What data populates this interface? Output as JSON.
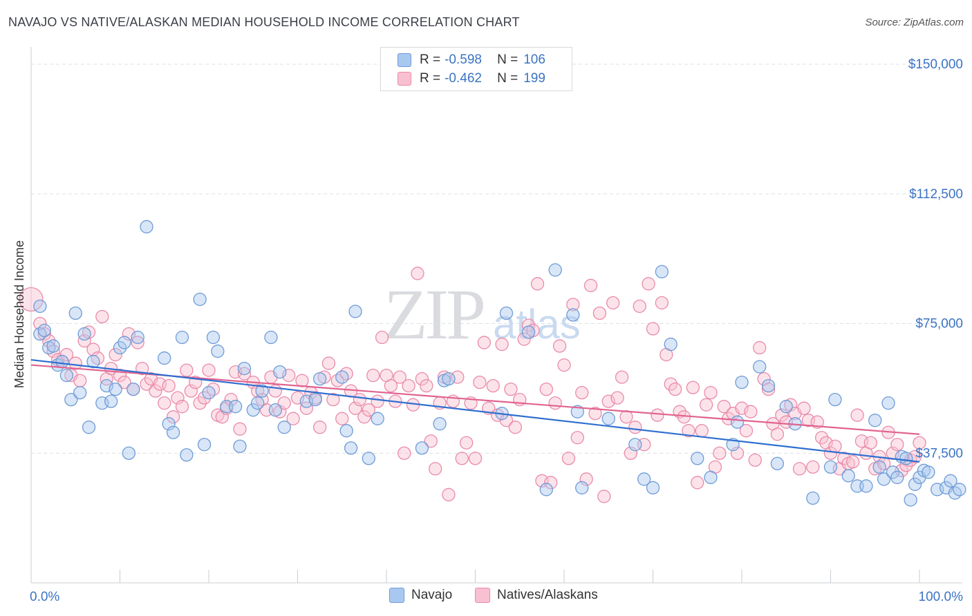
{
  "title": "NAVAJO VS NATIVE/ALASKAN MEDIAN HOUSEHOLD INCOME CORRELATION CHART",
  "source": "Source: ZipAtlas.com",
  "watermark": "ZIPatlas",
  "legend_top": [
    {
      "r_label": "R =",
      "r_value": "-0.598",
      "n_label": "N =",
      "n_value": "106"
    },
    {
      "r_label": "R =",
      "r_value": "-0.462",
      "n_label": "N =",
      "n_value": "199"
    }
  ],
  "colors": {
    "navajo_fill": "#a9c8f0",
    "navajo_stroke": "#6e9bd6",
    "navajo_line": "#2f6fd0",
    "native_fill": "#f8c0d0",
    "native_stroke": "#e98aaa",
    "native_line": "#e0638f",
    "axis_text": "#3b73c4",
    "grid": "#dcdfe4"
  },
  "chart_data": {
    "type": "scatter",
    "title": "NAVAJO VS NATIVE/ALASKAN MEDIAN HOUSEHOLD INCOME CORRELATION CHART",
    "xlabel": "",
    "ylabel": "Median Household Income",
    "x_tick_labels": [
      "0.0%",
      "100.0%"
    ],
    "y_ticks": [
      37500,
      75000,
      112500,
      150000
    ],
    "y_tick_labels": [
      "$37,500",
      "$75,000",
      "$112,500",
      "$150,000"
    ],
    "xlim": [
      0,
      100
    ],
    "ylim": [
      0,
      153000
    ],
    "grid": true,
    "legend_position": "bottom",
    "series": [
      {
        "name": "Navajo",
        "r": -0.598,
        "n": 106,
        "trend": [
          [
            0,
            64500
          ],
          [
            100,
            35000
          ]
        ],
        "points": [
          [
            1,
            80000
          ],
          [
            1,
            72000
          ],
          [
            1.5,
            73000
          ],
          [
            2,
            68000
          ],
          [
            2.5,
            68500
          ],
          [
            3,
            63000
          ],
          [
            3.5,
            64000
          ],
          [
            4,
            60000
          ],
          [
            4.5,
            53000
          ],
          [
            5,
            78000
          ],
          [
            5.5,
            55000
          ],
          [
            6,
            72000
          ],
          [
            6.5,
            45000
          ],
          [
            7,
            64000
          ],
          [
            8,
            52000
          ],
          [
            8.5,
            57000
          ],
          [
            9,
            52500
          ],
          [
            9.5,
            56000
          ],
          [
            10,
            68000
          ],
          [
            10.5,
            69500
          ],
          [
            11,
            37500
          ],
          [
            11.5,
            56000
          ],
          [
            12,
            71000
          ],
          [
            13,
            103000
          ],
          [
            15,
            65000
          ],
          [
            15.5,
            46000
          ],
          [
            16,
            43500
          ],
          [
            17,
            71000
          ],
          [
            17.5,
            37000
          ],
          [
            19,
            82000
          ],
          [
            19.5,
            40000
          ],
          [
            20,
            55000
          ],
          [
            20.5,
            71000
          ],
          [
            21,
            67000
          ],
          [
            22,
            51000
          ],
          [
            23,
            51000
          ],
          [
            23.5,
            39500
          ],
          [
            24,
            62000
          ],
          [
            25,
            50000
          ],
          [
            25.5,
            52000
          ],
          [
            26,
            55500
          ],
          [
            27,
            71000
          ],
          [
            27.5,
            50000
          ],
          [
            28,
            61000
          ],
          [
            28.5,
            45000
          ],
          [
            31,
            52500
          ],
          [
            32,
            53000
          ],
          [
            32.5,
            59000
          ],
          [
            35,
            59500
          ],
          [
            35.5,
            44000
          ],
          [
            36,
            39000
          ],
          [
            36.5,
            78500
          ],
          [
            38,
            36000
          ],
          [
            39,
            47500
          ],
          [
            44,
            39000
          ],
          [
            46,
            46000
          ],
          [
            46.5,
            58500
          ],
          [
            47,
            59000
          ],
          [
            53,
            49000
          ],
          [
            53.5,
            78000
          ],
          [
            56,
            72500
          ],
          [
            58,
            27000
          ],
          [
            59,
            90500
          ],
          [
            61,
            77500
          ],
          [
            61.5,
            49500
          ],
          [
            62,
            27500
          ],
          [
            65,
            47500
          ],
          [
            68,
            40000
          ],
          [
            69,
            30000
          ],
          [
            70,
            27500
          ],
          [
            71,
            90000
          ],
          [
            72,
            69000
          ],
          [
            75,
            36000
          ],
          [
            76.5,
            30500
          ],
          [
            79,
            40000
          ],
          [
            79.5,
            46500
          ],
          [
            80,
            58000
          ],
          [
            82,
            62500
          ],
          [
            83,
            57000
          ],
          [
            84,
            34500
          ],
          [
            85,
            51000
          ],
          [
            86,
            46000
          ],
          [
            88,
            24500
          ],
          [
            90,
            33500
          ],
          [
            90.5,
            53000
          ],
          [
            92,
            31000
          ],
          [
            93,
            28000
          ],
          [
            94,
            28000
          ],
          [
            95,
            47000
          ],
          [
            95.5,
            33500
          ],
          [
            96,
            30000
          ],
          [
            96.5,
            52000
          ],
          [
            97,
            32000
          ],
          [
            97.5,
            30500
          ],
          [
            98,
            36500
          ],
          [
            98.5,
            36000
          ],
          [
            99,
            24000
          ],
          [
            99.5,
            28500
          ],
          [
            100,
            30500
          ],
          [
            100.5,
            32500
          ],
          [
            101,
            32000
          ],
          [
            102,
            27000
          ],
          [
            103,
            27500
          ],
          [
            103.5,
            29500
          ],
          [
            104,
            26000
          ],
          [
            104.5,
            27000
          ]
        ]
      },
      {
        "name": "Natives/Alaskans",
        "r": -0.462,
        "n": 199,
        "trend": [
          [
            0,
            63000
          ],
          [
            100,
            43000
          ]
        ],
        "points": [
          [
            0,
            82000
          ],
          [
            1,
            75000
          ],
          [
            1.5,
            72000
          ],
          [
            2,
            70000
          ],
          [
            2.5,
            67000
          ],
          [
            3,
            64500
          ],
          [
            3.5,
            64000
          ],
          [
            4,
            66000
          ],
          [
            4.5,
            60000
          ],
          [
            5,
            63500
          ],
          [
            5.5,
            58500
          ],
          [
            6,
            70000
          ],
          [
            6.5,
            72500
          ],
          [
            7,
            67500
          ],
          [
            7.5,
            65000
          ],
          [
            8,
            77000
          ],
          [
            8.5,
            59000
          ],
          [
            9,
            62000
          ],
          [
            9.5,
            66000
          ],
          [
            10,
            60000
          ],
          [
            10.5,
            58000
          ],
          [
            11,
            72000
          ],
          [
            11.5,
            56000
          ],
          [
            12,
            69500
          ],
          [
            12.5,
            62000
          ],
          [
            13,
            57500
          ],
          [
            13.5,
            59000
          ],
          [
            14,
            55500
          ],
          [
            14.5,
            57500
          ],
          [
            15,
            52000
          ],
          [
            15.5,
            57000
          ],
          [
            16,
            48000
          ],
          [
            16.5,
            53500
          ],
          [
            17,
            51000
          ],
          [
            17.5,
            61500
          ],
          [
            18,
            55500
          ],
          [
            18.5,
            58000
          ],
          [
            19,
            52000
          ],
          [
            19.5,
            53500
          ],
          [
            20,
            61500
          ],
          [
            20.5,
            56000
          ],
          [
            21,
            48500
          ],
          [
            21.5,
            48000
          ],
          [
            22,
            50500
          ],
          [
            22.5,
            53000
          ],
          [
            23,
            61000
          ],
          [
            23.5,
            44500
          ],
          [
            24,
            60500
          ],
          [
            25,
            58000
          ],
          [
            25.5,
            55500
          ],
          [
            26,
            53000
          ],
          [
            26.5,
            50000
          ],
          [
            27,
            59500
          ],
          [
            27.5,
            55500
          ],
          [
            28,
            49500
          ],
          [
            28.5,
            52000
          ],
          [
            29,
            60000
          ],
          [
            29.5,
            47500
          ],
          [
            30,
            53500
          ],
          [
            30.5,
            58500
          ],
          [
            31,
            50500
          ],
          [
            31.5,
            55000
          ],
          [
            32,
            53500
          ],
          [
            32.5,
            45000
          ],
          [
            33,
            59500
          ],
          [
            33.5,
            63500
          ],
          [
            34,
            53000
          ],
          [
            34.5,
            58500
          ],
          [
            35,
            47500
          ],
          [
            35.5,
            60500
          ],
          [
            36,
            55500
          ],
          [
            36.5,
            50500
          ],
          [
            37,
            53000
          ],
          [
            37.5,
            48000
          ],
          [
            38,
            50000
          ],
          [
            38.5,
            60000
          ],
          [
            39,
            52500
          ],
          [
            39.5,
            71000
          ],
          [
            40,
            60000
          ],
          [
            40.5,
            57000
          ],
          [
            41,
            52500
          ],
          [
            41.5,
            59500
          ],
          [
            42,
            37500
          ],
          [
            42.5,
            57000
          ],
          [
            43,
            51500
          ],
          [
            43.5,
            89500
          ],
          [
            44,
            59000
          ],
          [
            44.5,
            57000
          ],
          [
            45,
            41000
          ],
          [
            45.5,
            33000
          ],
          [
            46,
            52000
          ],
          [
            46.5,
            59500
          ],
          [
            47,
            25500
          ],
          [
            47.5,
            52500
          ],
          [
            48,
            59500
          ],
          [
            48.5,
            36000
          ],
          [
            49,
            40500
          ],
          [
            49.5,
            52000
          ],
          [
            50,
            36000
          ],
          [
            50.5,
            58000
          ],
          [
            51,
            69500
          ],
          [
            51.5,
            50500
          ],
          [
            52,
            57000
          ],
          [
            52.5,
            48500
          ],
          [
            53,
            69000
          ],
          [
            53.5,
            47000
          ],
          [
            54,
            56000
          ],
          [
            54.5,
            45000
          ],
          [
            55,
            53000
          ],
          [
            55.5,
            70500
          ],
          [
            56,
            74500
          ],
          [
            56.5,
            73000
          ],
          [
            57,
            86500
          ],
          [
            57.5,
            29500
          ],
          [
            58,
            56000
          ],
          [
            58.5,
            29000
          ],
          [
            59,
            52000
          ],
          [
            59.5,
            68500
          ],
          [
            60,
            63000
          ],
          [
            60.5,
            36000
          ],
          [
            61,
            80500
          ],
          [
            61.5,
            42000
          ],
          [
            62,
            55000
          ],
          [
            62.5,
            30000
          ],
          [
            63,
            86000
          ],
          [
            63.5,
            49000
          ],
          [
            64,
            78000
          ],
          [
            64.5,
            25000
          ],
          [
            65,
            52500
          ],
          [
            65.5,
            81000
          ],
          [
            66,
            53500
          ],
          [
            66.5,
            59500
          ],
          [
            67,
            48000
          ],
          [
            67.5,
            37500
          ],
          [
            68,
            45000
          ],
          [
            68.5,
            80000
          ],
          [
            69,
            40000
          ],
          [
            69.5,
            86500
          ],
          [
            70,
            73500
          ],
          [
            70.5,
            48500
          ],
          [
            71,
            81000
          ],
          [
            71.5,
            66000
          ],
          [
            72,
            57500
          ],
          [
            72.5,
            56000
          ],
          [
            73,
            49500
          ],
          [
            73.5,
            48000
          ],
          [
            74,
            44000
          ],
          [
            74.5,
            56500
          ],
          [
            75,
            29000
          ],
          [
            75.5,
            44000
          ],
          [
            76,
            51500
          ],
          [
            76.5,
            55000
          ],
          [
            77,
            33500
          ],
          [
            77.5,
            37500
          ],
          [
            78,
            51000
          ],
          [
            78.5,
            47500
          ],
          [
            79,
            49000
          ],
          [
            79.5,
            37500
          ],
          [
            80,
            50500
          ],
          [
            80.5,
            44000
          ],
          [
            81,
            49500
          ],
          [
            81.5,
            35500
          ],
          [
            82,
            68000
          ],
          [
            82.5,
            59000
          ],
          [
            83,
            56000
          ],
          [
            83.5,
            46000
          ],
          [
            84,
            43000
          ],
          [
            84.5,
            48500
          ],
          [
            85,
            46500
          ],
          [
            85.5,
            51500
          ],
          [
            86,
            49000
          ],
          [
            86.5,
            33000
          ],
          [
            87,
            50500
          ],
          [
            87.5,
            47000
          ],
          [
            88,
            33500
          ],
          [
            88.5,
            46500
          ],
          [
            89,
            42000
          ],
          [
            89.5,
            40500
          ],
          [
            90,
            37500
          ],
          [
            90.5,
            39500
          ],
          [
            91,
            33000
          ],
          [
            91.5,
            36000
          ],
          [
            92,
            34500
          ],
          [
            92.5,
            35000
          ],
          [
            93,
            48500
          ],
          [
            93.5,
            41000
          ],
          [
            94,
            37500
          ],
          [
            94.5,
            40500
          ],
          [
            95,
            33000
          ],
          [
            95.5,
            36500
          ],
          [
            96,
            34500
          ],
          [
            96.5,
            43500
          ],
          [
            97,
            37500
          ],
          [
            97.5,
            40000
          ],
          [
            98,
            32500
          ],
          [
            98.5,
            34000
          ],
          [
            99,
            35500
          ],
          [
            99.5,
            36500
          ],
          [
            100,
            40500
          ]
        ]
      }
    ]
  }
}
